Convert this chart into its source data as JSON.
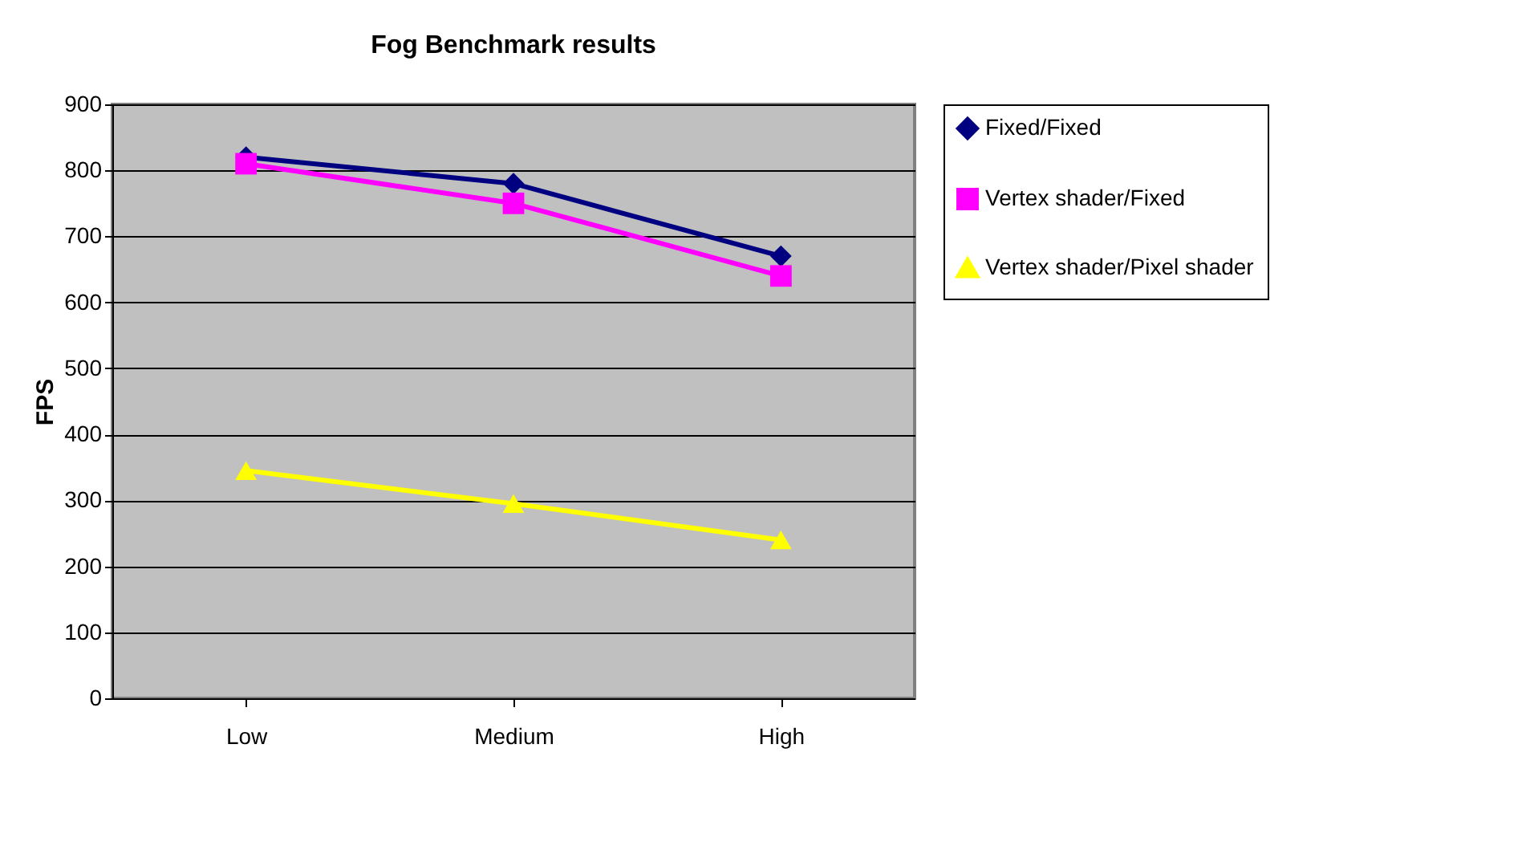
{
  "chart_data": {
    "type": "line",
    "title": "Fog Benchmark results",
    "ylabel": "FPS",
    "categories": [
      "Low",
      "Medium",
      "High"
    ],
    "series": [
      {
        "name": "Fixed/Fixed",
        "color": "#000080",
        "marker": "diamond",
        "values": [
          820,
          780,
          670
        ]
      },
      {
        "name": "Vertex shader/Fixed",
        "color": "#ff00ff",
        "marker": "square",
        "values": [
          810,
          750,
          640
        ]
      },
      {
        "name": "Vertex shader/Pixel shader",
        "color": "#ffff00",
        "marker": "triangle",
        "values": [
          345,
          295,
          240
        ]
      }
    ],
    "ylim": [
      0,
      900
    ],
    "yticks": [
      0,
      100,
      200,
      300,
      400,
      500,
      600,
      700,
      800,
      900
    ],
    "grid": "y",
    "legend": "right",
    "line_style": "solid"
  }
}
